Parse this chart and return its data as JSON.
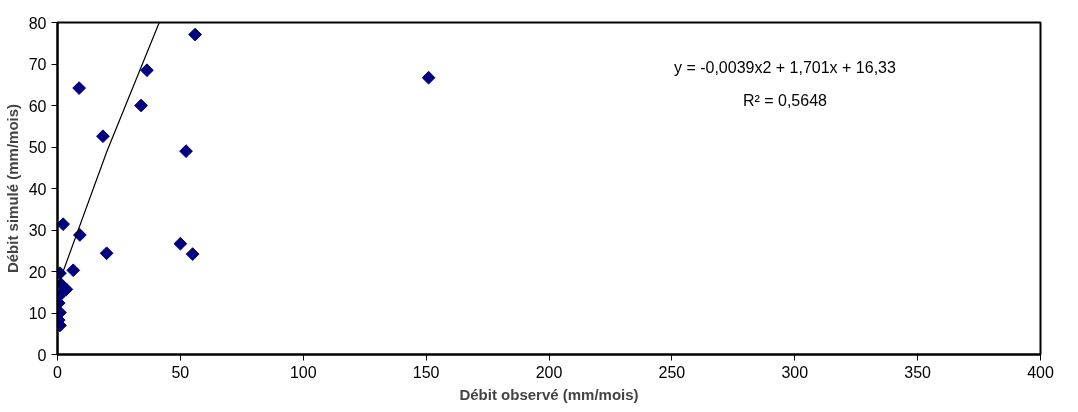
{
  "chart_data": {
    "type": "scatter",
    "xlabel": "Débit observé (mm/mois)",
    "ylabel": "Débit simulé (mm/mois)",
    "xlim": [
      0,
      400
    ],
    "xticks": [
      0,
      50,
      100,
      150,
      200,
      250,
      300,
      350,
      400
    ],
    "ylim": [
      0,
      80
    ],
    "yticks": [
      0,
      10,
      20,
      30,
      40,
      50,
      60,
      70,
      80
    ],
    "grid": false,
    "marker": "diamond",
    "series": [
      {
        "color": "#000080",
        "x": [
          56,
          36.4,
          8.8,
          34,
          18.5,
          52.3,
          2.3,
          9.1,
          20,
          50,
          55,
          6.4,
          1,
          1.5,
          3.6,
          1.5,
          0.5,
          1,
          1,
          0.5,
          151
        ],
        "values": [
          77.1,
          68.5,
          64.2,
          60,
          52.6,
          49,
          31.4,
          28.8,
          24.4,
          26.7,
          24.2,
          20.3,
          19.6,
          16.9,
          15.7,
          14.6,
          12.4,
          10.1,
          7,
          8.3,
          66.7
        ]
      },
      {
        "type": "line",
        "color": "#000000",
        "marker": "none",
        "x": [
          0,
          20,
          41.4
        ],
        "values": [
          16.3,
          48.8,
          80
        ]
      }
    ],
    "annotations": [
      "y = -0,0039x2 + 1,701x + 16,33",
      "R² = 0,5648"
    ]
  }
}
